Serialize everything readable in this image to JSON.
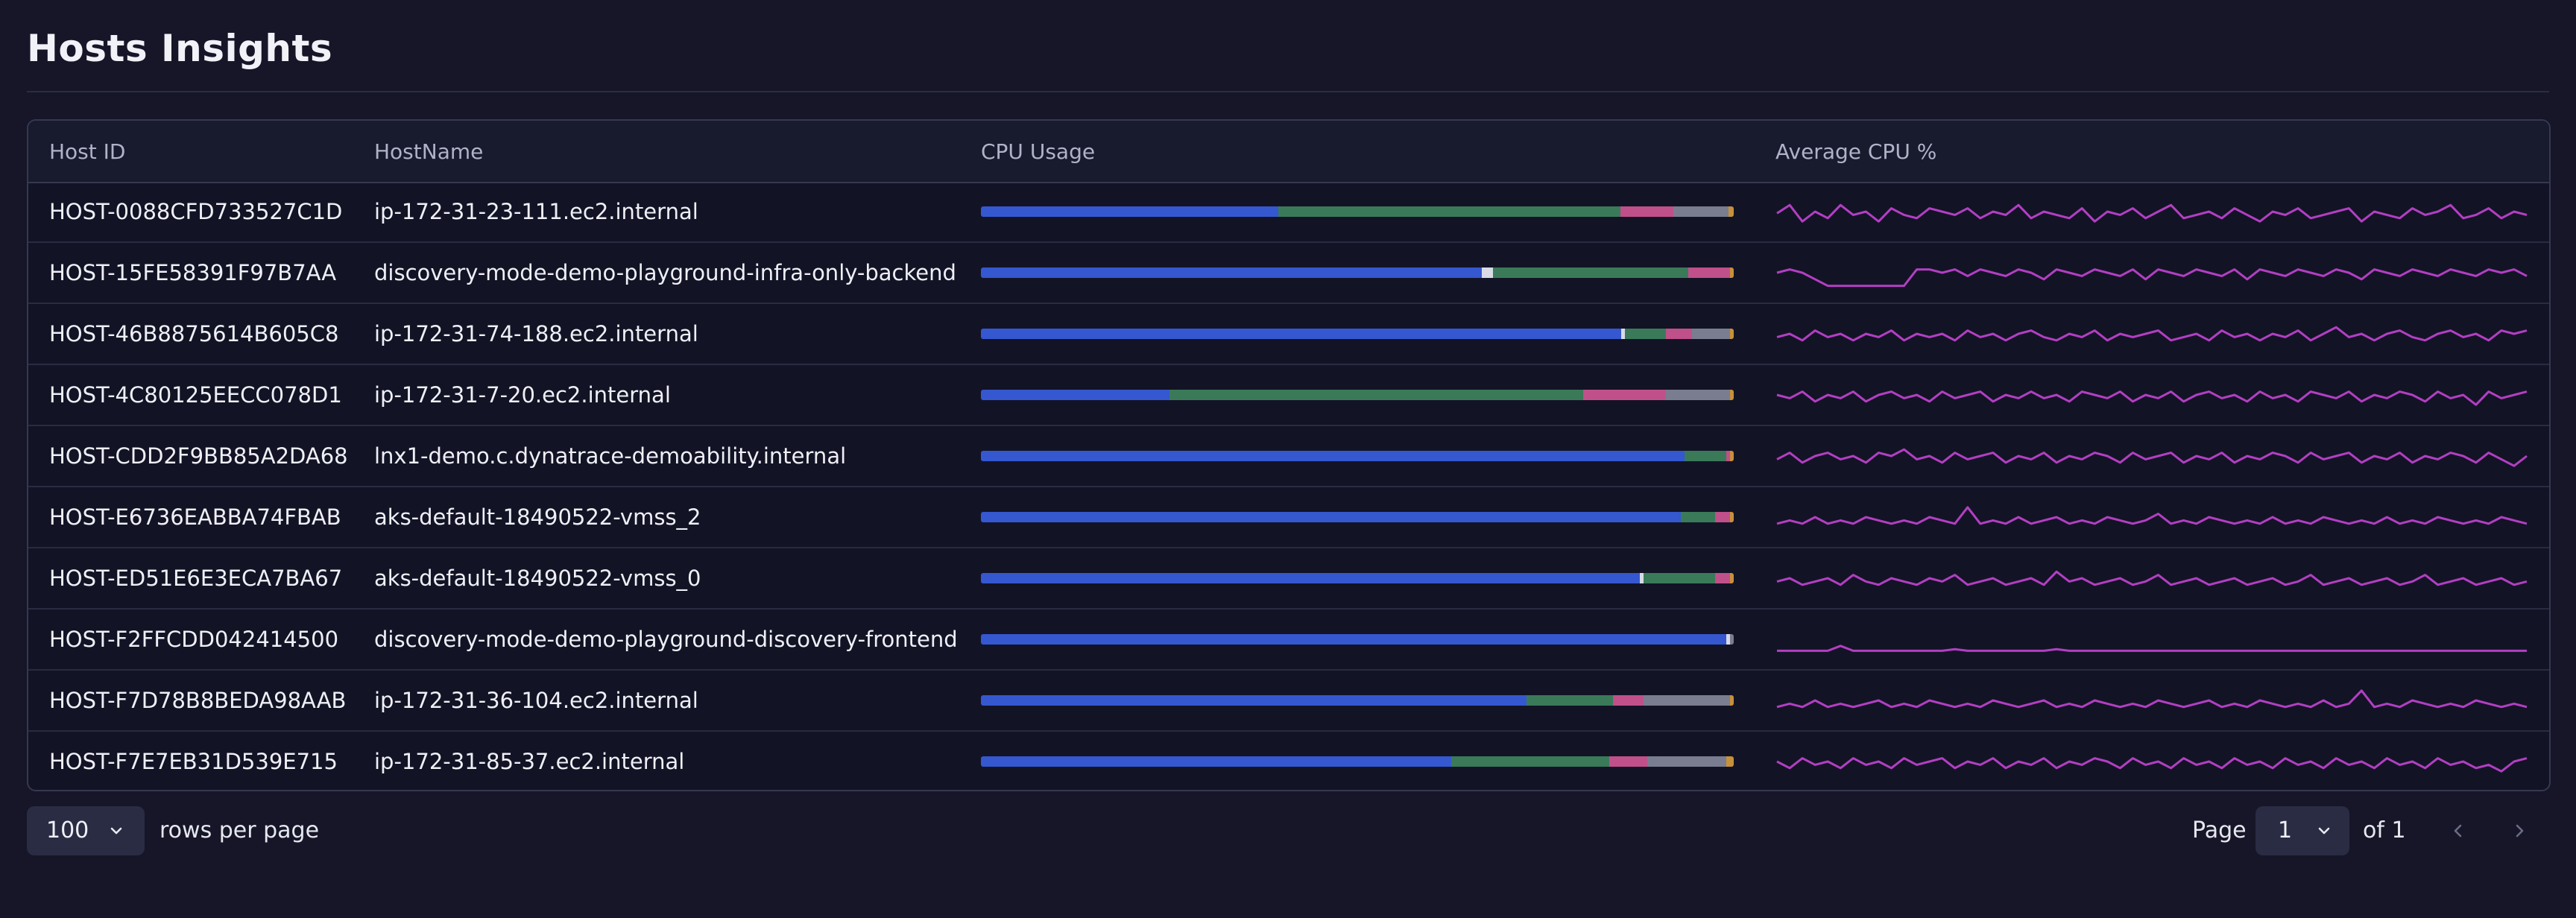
{
  "title": "Hosts Insights",
  "table": {
    "columns": [
      "Host ID",
      "HostName",
      "CPU Usage",
      "Average CPU %"
    ],
    "segment_colors": [
      "#3557d0",
      "#d8dbe6",
      "#3a7a59",
      "#c0508a",
      "#7a7d90",
      "#c7903a"
    ],
    "rows": [
      {
        "host_id": "HOST-0088CFD733527C1D",
        "hostname": "ip-172-31-23-111.ec2.internal",
        "cpu_usage": [
          0.395,
          0,
          0.455,
          0.07,
          0.073,
          0.007
        ],
        "avg_cpu": [
          0.45,
          0.7,
          0.2,
          0.5,
          0.3,
          0.7,
          0.4,
          0.5,
          0.2,
          0.6,
          0.4,
          0.3,
          0.6,
          0.5,
          0.4,
          0.6,
          0.3,
          0.5,
          0.4,
          0.7,
          0.3,
          0.5,
          0.4,
          0.3,
          0.6,
          0.2,
          0.5,
          0.4,
          0.6,
          0.3,
          0.5,
          0.7,
          0.3,
          0.4,
          0.5,
          0.3,
          0.6,
          0.4,
          0.2,
          0.5,
          0.4,
          0.6,
          0.3,
          0.4,
          0.5,
          0.6,
          0.2,
          0.5,
          0.4,
          0.3,
          0.6,
          0.4,
          0.5,
          0.7,
          0.3,
          0.4,
          0.6,
          0.3,
          0.5,
          0.4
        ]
      },
      {
        "host_id": "HOST-15FE58391F97B7AA",
        "hostname": "discovery-mode-demo-playground-infra-only-backend",
        "cpu_usage": [
          0.665,
          0.015,
          0.26,
          0.055,
          0,
          0.005
        ],
        "avg_cpu": [
          0.5,
          0.6,
          0.5,
          0.3,
          0.1,
          0.1,
          0.1,
          0.1,
          0.1,
          0.1,
          0.1,
          0.6,
          0.6,
          0.5,
          0.6,
          0.4,
          0.6,
          0.5,
          0.4,
          0.6,
          0.5,
          0.3,
          0.6,
          0.5,
          0.4,
          0.6,
          0.5,
          0.4,
          0.6,
          0.3,
          0.6,
          0.5,
          0.4,
          0.6,
          0.5,
          0.4,
          0.6,
          0.3,
          0.6,
          0.5,
          0.4,
          0.6,
          0.5,
          0.4,
          0.6,
          0.5,
          0.3,
          0.6,
          0.5,
          0.4,
          0.6,
          0.5,
          0.4,
          0.6,
          0.5,
          0.4,
          0.6,
          0.5,
          0.6,
          0.4
        ]
      },
      {
        "host_id": "HOST-46B8875614B605C8",
        "hostname": "ip-172-31-74-188.ec2.internal",
        "cpu_usage": [
          0.85,
          0.005,
          0.055,
          0.035,
          0.05,
          0.005
        ],
        "avg_cpu": [
          0.4,
          0.5,
          0.3,
          0.6,
          0.4,
          0.5,
          0.3,
          0.5,
          0.4,
          0.6,
          0.3,
          0.5,
          0.4,
          0.5,
          0.3,
          0.6,
          0.4,
          0.5,
          0.3,
          0.5,
          0.6,
          0.4,
          0.3,
          0.5,
          0.4,
          0.6,
          0.3,
          0.5,
          0.4,
          0.5,
          0.6,
          0.3,
          0.4,
          0.5,
          0.3,
          0.6,
          0.4,
          0.5,
          0.3,
          0.5,
          0.4,
          0.6,
          0.3,
          0.5,
          0.7,
          0.4,
          0.5,
          0.3,
          0.5,
          0.6,
          0.4,
          0.3,
          0.5,
          0.6,
          0.4,
          0.5,
          0.3,
          0.6,
          0.5,
          0.6
        ]
      },
      {
        "host_id": "HOST-4C80125EECC078D1",
        "hostname": "ip-172-31-7-20.ec2.internal",
        "cpu_usage": [
          0.25,
          0,
          0.55,
          0.11,
          0.085,
          0.005
        ],
        "avg_cpu": [
          0.5,
          0.4,
          0.6,
          0.3,
          0.5,
          0.4,
          0.6,
          0.3,
          0.5,
          0.6,
          0.4,
          0.5,
          0.3,
          0.6,
          0.4,
          0.5,
          0.6,
          0.3,
          0.5,
          0.4,
          0.6,
          0.4,
          0.5,
          0.3,
          0.6,
          0.5,
          0.4,
          0.6,
          0.3,
          0.5,
          0.4,
          0.6,
          0.3,
          0.5,
          0.6,
          0.4,
          0.5,
          0.3,
          0.6,
          0.4,
          0.5,
          0.3,
          0.6,
          0.5,
          0.4,
          0.6,
          0.3,
          0.5,
          0.4,
          0.6,
          0.5,
          0.3,
          0.6,
          0.4,
          0.5,
          0.2,
          0.6,
          0.4,
          0.5,
          0.6
        ]
      },
      {
        "host_id": "HOST-CDD2F9BB85A2DA68",
        "hostname": "lnx1-demo.c.dynatrace-demoability.internal",
        "cpu_usage": [
          0.935,
          0,
          0.055,
          0.005,
          0,
          0.005
        ],
        "avg_cpu": [
          0.4,
          0.6,
          0.3,
          0.5,
          0.6,
          0.4,
          0.5,
          0.3,
          0.6,
          0.5,
          0.7,
          0.4,
          0.5,
          0.3,
          0.6,
          0.4,
          0.5,
          0.6,
          0.3,
          0.5,
          0.4,
          0.6,
          0.3,
          0.5,
          0.4,
          0.6,
          0.5,
          0.3,
          0.6,
          0.4,
          0.5,
          0.6,
          0.3,
          0.5,
          0.4,
          0.6,
          0.3,
          0.5,
          0.4,
          0.6,
          0.5,
          0.3,
          0.6,
          0.4,
          0.5,
          0.6,
          0.3,
          0.5,
          0.4,
          0.6,
          0.3,
          0.5,
          0.4,
          0.6,
          0.5,
          0.3,
          0.6,
          0.4,
          0.2,
          0.5
        ]
      },
      {
        "host_id": "HOST-E6736EABBA74FBAB",
        "hostname": "aks-default-18490522-vmss_2",
        "cpu_usage": [
          0.93,
          0,
          0.045,
          0.02,
          0,
          0.005
        ],
        "avg_cpu": [
          0.3,
          0.4,
          0.3,
          0.5,
          0.3,
          0.4,
          0.3,
          0.5,
          0.4,
          0.3,
          0.4,
          0.3,
          0.5,
          0.4,
          0.3,
          0.8,
          0.3,
          0.4,
          0.3,
          0.5,
          0.3,
          0.4,
          0.5,
          0.3,
          0.4,
          0.3,
          0.5,
          0.4,
          0.3,
          0.4,
          0.6,
          0.3,
          0.4,
          0.3,
          0.5,
          0.4,
          0.3,
          0.4,
          0.3,
          0.5,
          0.3,
          0.4,
          0.3,
          0.5,
          0.4,
          0.3,
          0.4,
          0.3,
          0.5,
          0.3,
          0.4,
          0.3,
          0.5,
          0.4,
          0.3,
          0.4,
          0.3,
          0.5,
          0.4,
          0.3
        ]
      },
      {
        "host_id": "HOST-ED51E6E3ECA7BA67",
        "hostname": "aks-default-18490522-vmss_0",
        "cpu_usage": [
          0.875,
          0.005,
          0.095,
          0.02,
          0,
          0.005
        ],
        "avg_cpu": [
          0.4,
          0.5,
          0.3,
          0.4,
          0.5,
          0.3,
          0.6,
          0.4,
          0.3,
          0.5,
          0.4,
          0.3,
          0.5,
          0.4,
          0.6,
          0.3,
          0.4,
          0.5,
          0.3,
          0.4,
          0.5,
          0.3,
          0.7,
          0.4,
          0.5,
          0.3,
          0.4,
          0.5,
          0.3,
          0.4,
          0.6,
          0.3,
          0.4,
          0.5,
          0.3,
          0.4,
          0.5,
          0.3,
          0.4,
          0.5,
          0.3,
          0.4,
          0.6,
          0.3,
          0.4,
          0.5,
          0.3,
          0.4,
          0.5,
          0.3,
          0.4,
          0.6,
          0.3,
          0.4,
          0.5,
          0.3,
          0.4,
          0.5,
          0.3,
          0.4
        ]
      },
      {
        "host_id": "HOST-F2FFCDD042414500",
        "hostname": "discovery-mode-demo-playground-discovery-frontend",
        "cpu_usage": [
          0.99,
          0.005,
          0,
          0,
          0.005,
          0
        ],
        "avg_cpu": [
          0.15,
          0.15,
          0.15,
          0.15,
          0.15,
          0.3,
          0.15,
          0.15,
          0.15,
          0.15,
          0.15,
          0.15,
          0.15,
          0.15,
          0.2,
          0.15,
          0.15,
          0.15,
          0.15,
          0.15,
          0.15,
          0.15,
          0.2,
          0.15,
          0.15,
          0.15,
          0.15,
          0.15,
          0.15,
          0.15,
          0.15,
          0.15,
          0.15,
          0.15,
          0.15,
          0.15,
          0.15,
          0.15,
          0.15,
          0.15,
          0.15,
          0.15,
          0.15,
          0.15,
          0.15,
          0.15,
          0.15,
          0.15,
          0.15,
          0.15,
          0.15,
          0.15,
          0.15,
          0.15,
          0.15,
          0.15,
          0.15,
          0.15,
          0.15,
          0.15
        ]
      },
      {
        "host_id": "HOST-F7D78B8BEDA98AAB",
        "hostname": "ip-172-31-36-104.ec2.internal",
        "cpu_usage": [
          0.725,
          0,
          0.115,
          0.04,
          0.115,
          0.005
        ],
        "avg_cpu": [
          0.3,
          0.4,
          0.3,
          0.5,
          0.3,
          0.4,
          0.3,
          0.4,
          0.5,
          0.3,
          0.4,
          0.3,
          0.5,
          0.4,
          0.3,
          0.4,
          0.3,
          0.5,
          0.4,
          0.3,
          0.4,
          0.5,
          0.3,
          0.4,
          0.3,
          0.5,
          0.4,
          0.3,
          0.4,
          0.3,
          0.5,
          0.4,
          0.3,
          0.4,
          0.5,
          0.3,
          0.4,
          0.3,
          0.5,
          0.4,
          0.3,
          0.4,
          0.3,
          0.5,
          0.3,
          0.4,
          0.8,
          0.3,
          0.4,
          0.3,
          0.5,
          0.4,
          0.3,
          0.4,
          0.3,
          0.5,
          0.4,
          0.3,
          0.4,
          0.3
        ]
      },
      {
        "host_id": "HOST-F7E7EB31D539E715",
        "hostname": "ip-172-31-85-37.ec2.internal",
        "cpu_usage": [
          0.625,
          0,
          0.21,
          0.05,
          0.105,
          0.01
        ],
        "avg_cpu": [
          0.5,
          0.3,
          0.6,
          0.4,
          0.5,
          0.3,
          0.6,
          0.4,
          0.5,
          0.3,
          0.6,
          0.4,
          0.5,
          0.6,
          0.3,
          0.5,
          0.4,
          0.6,
          0.3,
          0.5,
          0.4,
          0.6,
          0.3,
          0.5,
          0.4,
          0.6,
          0.5,
          0.3,
          0.6,
          0.4,
          0.5,
          0.3,
          0.6,
          0.4,
          0.5,
          0.3,
          0.6,
          0.4,
          0.5,
          0.3,
          0.6,
          0.4,
          0.5,
          0.3,
          0.6,
          0.4,
          0.5,
          0.3,
          0.6,
          0.4,
          0.5,
          0.3,
          0.6,
          0.4,
          0.5,
          0.3,
          0.4,
          0.2,
          0.5,
          0.6
        ]
      }
    ]
  },
  "pagination": {
    "rows_per_page": "100",
    "rows_per_page_label": "rows per page",
    "page_label": "Page",
    "page": "1",
    "of_label": "of 1"
  },
  "icons": {
    "chevron": "chevron-down-icon",
    "prev": "chevron-left-icon",
    "next": "chevron-right-icon"
  },
  "colors": {
    "background": "#161628",
    "sparkline": "#b23fc2"
  }
}
